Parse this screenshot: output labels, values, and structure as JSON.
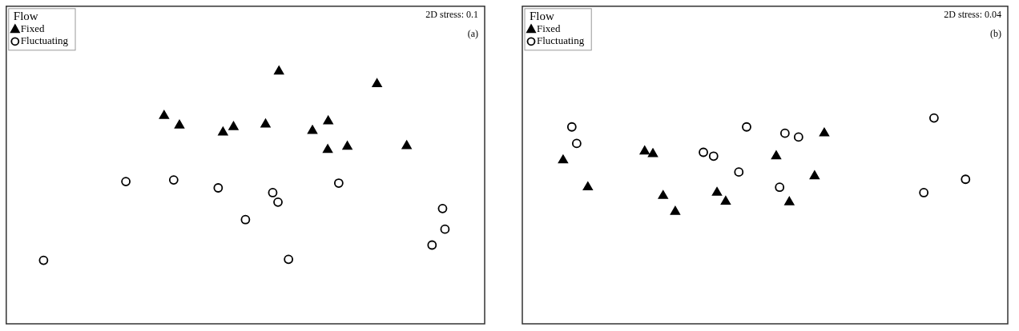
{
  "chart_data": [
    {
      "type": "scatter",
      "annotations": [
        "2D stress: 0.1",
        "(a)"
      ],
      "legend": "top-left",
      "legend_title": "Flow",
      "tick_labels": false,
      "grid": false,
      "xlim": [
        0,
        100
      ],
      "ylim": [
        0,
        100
      ],
      "series": [
        {
          "name": "Fixed",
          "color": "#000000",
          "marker": "triangle",
          "x": [
            57,
            77.5,
            33,
            36.2,
            45.3,
            47.5,
            54.2,
            64,
            67.3,
            67.2,
            71.3,
            83.7
          ],
          "values": [
            79.5,
            75.5,
            65.5,
            62.5,
            60.3,
            62,
            62.8,
            60.8,
            63.8,
            54.8,
            55.8,
            56
          ]
        },
        {
          "name": "Fluctuating",
          "color": "#000000",
          "marker": "circle-open",
          "x": [
            25,
            35,
            44.3,
            55.7,
            56.8,
            50,
            59,
            69.5,
            7.8,
            91.2,
            91.7,
            89
          ],
          "values": [
            44.8,
            45.3,
            42.8,
            41.3,
            38.3,
            32.8,
            20.3,
            44.3,
            20,
            36.3,
            29.8,
            24.8
          ]
        }
      ]
    },
    {
      "type": "scatter",
      "annotations": [
        "2D stress: 0.04",
        "(b)"
      ],
      "legend": "top-left",
      "legend_title": "Flow",
      "tick_labels": false,
      "grid": false,
      "xlim": [
        0,
        100
      ],
      "ylim": [
        0,
        100
      ],
      "series": [
        {
          "name": "Fixed",
          "color": "#000000",
          "marker": "triangle",
          "x": [
            8.4,
            13.5,
            25.2,
            26.9,
            29,
            31.5,
            40.1,
            41.9,
            52.3,
            62.2,
            60.2,
            55
          ],
          "values": [
            51.5,
            43,
            54.3,
            53.5,
            40.3,
            35.3,
            41.3,
            38.5,
            52.8,
            60,
            46.5,
            38.3
          ]
        },
        {
          "name": "Fluctuating",
          "color": "#000000",
          "marker": "circle-open",
          "x": [
            10.2,
            11.2,
            37.3,
            39.4,
            46.2,
            44.6,
            54.1,
            56.9,
            53,
            84.8,
            82.7,
            91.3
          ],
          "values": [
            62,
            56.8,
            54,
            52.8,
            62,
            47.8,
            60,
            58.8,
            43,
            64.8,
            41.3,
            45.5
          ]
        }
      ]
    }
  ]
}
